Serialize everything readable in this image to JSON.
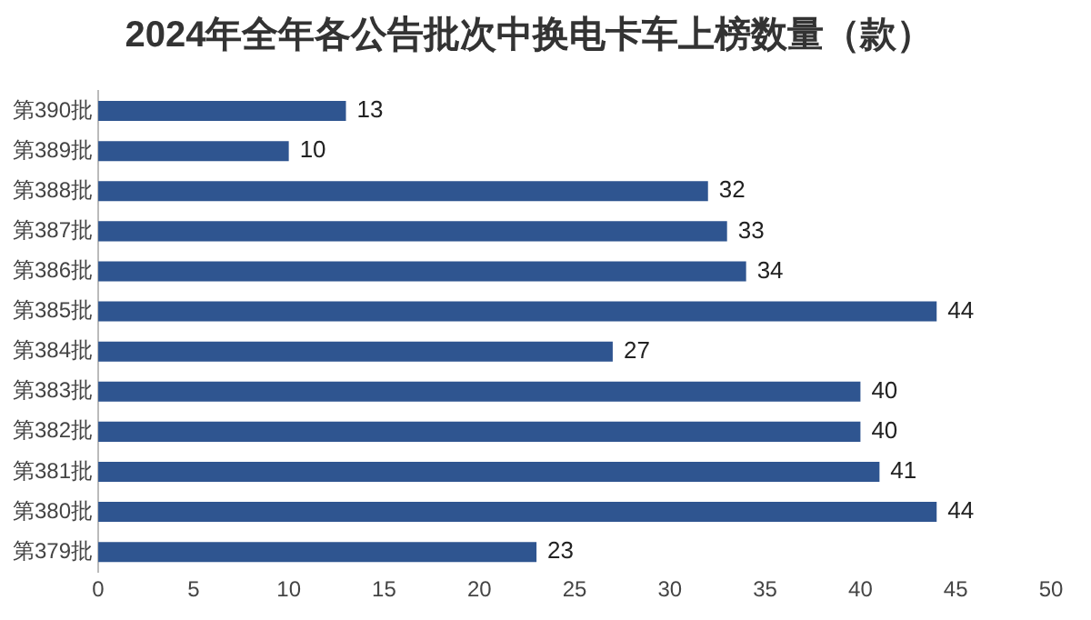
{
  "chart_data": {
    "type": "bar",
    "orientation": "horizontal",
    "title": "2024年全年各公告批次中换电卡车上榜数量（款）",
    "categories": [
      "第390批",
      "第389批",
      "第388批",
      "第387批",
      "第386批",
      "第385批",
      "第384批",
      "第383批",
      "第382批",
      "第381批",
      "第380批",
      "第379批"
    ],
    "values": [
      13,
      10,
      32,
      33,
      34,
      44,
      27,
      40,
      40,
      41,
      44,
      23
    ],
    "color": "#2f5590",
    "xlim": [
      0,
      50
    ],
    "xticks": [
      0,
      5,
      10,
      15,
      20,
      25,
      30,
      35,
      40,
      45,
      50
    ],
    "grid": false,
    "legend": false,
    "data_labels": true
  }
}
